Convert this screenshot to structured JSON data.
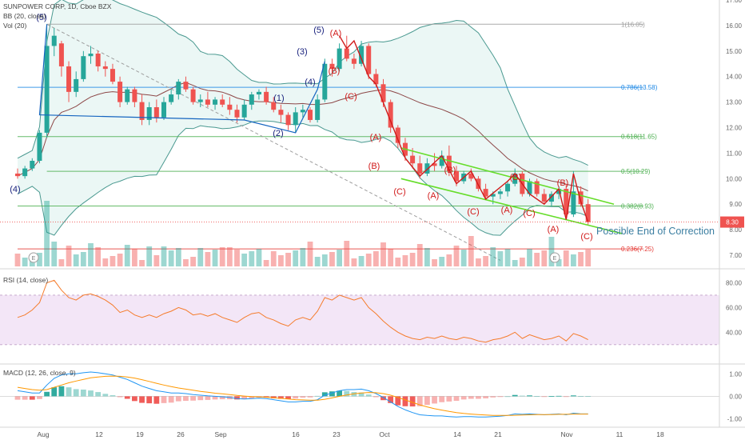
{
  "header": {
    "symbol_line": "SUNPOWER CORP, 1D, Cboe BZX",
    "bb_label": "BB (20, close)",
    "vol_label": "Vol (20)",
    "rsi_label": "RSI (14, close)",
    "macd_label": "MACD (12, 26, close, 9)"
  },
  "colors": {
    "up": "#26a69a",
    "down": "#ef5350",
    "bb_fill": "#e3f3f1",
    "bb_band": "#4a9990",
    "bb_basis": "#8d4848",
    "rsi_band": "#f3e6f7",
    "rsi_line": "#f57c2c",
    "macd_line": "#2196f3",
    "signal_line": "#ff9800",
    "channel": "#66dd2a",
    "wave": "#d11a1a",
    "wave_blue": "#1565c0",
    "fib": "#4caf50",
    "fib_1": "#9e9e9e",
    "fib_786": "#1e88e5",
    "fib_236": "#e53935",
    "price_badge": "#ef5350"
  },
  "annotations": {
    "possible_end": "Possible End of Correction",
    "earnings_marker": "E"
  },
  "fib_labels": [
    "1(16.05)",
    "0.786(13.58)",
    "0.618(11.65)",
    "0.5(10.29)",
    "0.382(8.93)",
    "0.236(7.25)"
  ],
  "wave_labels": [
    "(4)",
    "(5)",
    "(1)",
    "(2)",
    "(3)",
    "(4)",
    "(5)",
    "(A)",
    "(B)",
    "(C)",
    "(A)",
    "(B)",
    "(C)",
    "(A)",
    "(B)",
    "(C)",
    "(A)",
    "(B)",
    "(C)",
    "(A)",
    "(B)",
    "(C)"
  ],
  "last_price": "8.30",
  "chart_data": {
    "type": "candlestick",
    "title": "SUNPOWER CORP, 1D, Cboe BZX",
    "x_tick_labels": [
      "Aug",
      "12",
      "19",
      "26",
      "Sep",
      "16",
      "23",
      "Oct",
      "14",
      "21",
      "Nov",
      "11",
      "18"
    ],
    "price_axis": {
      "ylim": [
        6.5,
        17.0
      ],
      "tick_labels": [
        "7.00",
        "8.00",
        "9.00",
        "10.00",
        "11.00",
        "12.00",
        "13.00",
        "14.00",
        "15.00",
        "16.00",
        "17.00"
      ]
    },
    "candles": [
      [
        10.2,
        10.4,
        10.0,
        10.1
      ],
      [
        10.1,
        10.5,
        10.0,
        10.4
      ],
      [
        10.4,
        10.8,
        10.3,
        10.7
      ],
      [
        10.7,
        11.9,
        10.6,
        11.8
      ],
      [
        11.8,
        16.05,
        11.6,
        15.2
      ],
      [
        15.2,
        15.9,
        14.8,
        15.6
      ],
      [
        15.3,
        15.4,
        14.0,
        14.4
      ],
      [
        14.4,
        14.6,
        13.0,
        13.4
      ],
      [
        13.4,
        14.2,
        13.2,
        13.9
      ],
      [
        13.9,
        15.0,
        13.8,
        14.8
      ],
      [
        14.8,
        15.2,
        14.5,
        14.9
      ],
      [
        14.9,
        15.0,
        14.2,
        14.4
      ],
      [
        14.4,
        14.6,
        14.0,
        14.3
      ],
      [
        14.3,
        14.5,
        13.7,
        13.8
      ],
      [
        13.8,
        14.0,
        12.8,
        13.0
      ],
      [
        13.0,
        13.6,
        12.9,
        13.5
      ],
      [
        13.5,
        13.6,
        12.8,
        13.0
      ],
      [
        13.0,
        13.3,
        12.1,
        12.3
      ],
      [
        12.3,
        13.0,
        12.1,
        12.8
      ],
      [
        12.8,
        13.1,
        12.2,
        12.4
      ],
      [
        12.4,
        13.2,
        12.3,
        13.0
      ],
      [
        13.0,
        13.5,
        12.9,
        13.3
      ],
      [
        13.3,
        13.9,
        13.1,
        13.8
      ],
      [
        13.8,
        14.0,
        13.4,
        13.5
      ],
      [
        13.5,
        13.6,
        12.9,
        13.0
      ],
      [
        13.0,
        13.3,
        12.8,
        13.1
      ],
      [
        13.1,
        13.4,
        12.8,
        12.9
      ],
      [
        12.9,
        13.2,
        12.7,
        13.1
      ],
      [
        13.1,
        13.3,
        12.8,
        12.9
      ],
      [
        12.9,
        13.2,
        12.5,
        12.7
      ],
      [
        12.7,
        12.9,
        12.2,
        12.4
      ],
      [
        12.4,
        13.1,
        12.3,
        12.9
      ],
      [
        12.9,
        13.4,
        12.7,
        13.3
      ],
      [
        13.3,
        13.5,
        13.1,
        13.4
      ],
      [
        13.4,
        13.6,
        12.9,
        13.0
      ],
      [
        13.0,
        13.2,
        12.6,
        12.7
      ],
      [
        12.7,
        12.9,
        12.2,
        12.5
      ],
      [
        12.5,
        12.6,
        11.9,
        12.1
      ],
      [
        12.1,
        12.8,
        11.8,
        12.6
      ],
      [
        12.6,
        12.9,
        12.4,
        12.7
      ],
      [
        12.7,
        12.8,
        12.2,
        12.3
      ],
      [
        12.3,
        13.3,
        12.2,
        13.1
      ],
      [
        13.1,
        14.7,
        13.0,
        14.5
      ],
      [
        14.5,
        14.7,
        14.0,
        14.3
      ],
      [
        14.3,
        15.3,
        14.2,
        15.1
      ],
      [
        15.1,
        15.6,
        14.6,
        14.7
      ],
      [
        14.7,
        14.9,
        14.3,
        14.5
      ],
      [
        14.5,
        15.4,
        14.4,
        15.2
      ],
      [
        15.2,
        15.3,
        13.9,
        14.1
      ],
      [
        14.1,
        14.3,
        13.6,
        13.7
      ],
      [
        13.7,
        13.9,
        12.8,
        13.0
      ],
      [
        13.0,
        13.1,
        11.8,
        12.0
      ],
      [
        12.0,
        12.1,
        11.2,
        11.4
      ],
      [
        11.4,
        11.6,
        10.7,
        10.9
      ],
      [
        10.9,
        11.2,
        10.4,
        10.6
      ],
      [
        10.6,
        10.9,
        10.0,
        10.2
      ],
      [
        10.2,
        10.8,
        10.1,
        10.6
      ],
      [
        10.6,
        11.0,
        10.3,
        10.5
      ],
      [
        10.5,
        11.1,
        10.4,
        10.9
      ],
      [
        10.9,
        11.3,
        10.1,
        10.3
      ],
      [
        10.3,
        10.5,
        9.7,
        9.9
      ],
      [
        9.9,
        10.3,
        9.8,
        10.2
      ],
      [
        10.2,
        10.4,
        9.9,
        10.0
      ],
      [
        10.0,
        10.1,
        9.5,
        9.6
      ],
      [
        9.6,
        9.8,
        9.2,
        9.3
      ],
      [
        9.3,
        9.5,
        9.0,
        9.4
      ],
      [
        9.4,
        9.6,
        9.2,
        9.5
      ],
      [
        9.5,
        9.9,
        9.3,
        9.8
      ],
      [
        9.8,
        10.4,
        9.7,
        10.2
      ],
      [
        10.2,
        10.3,
        9.3,
        9.4
      ],
      [
        9.4,
        10.0,
        9.3,
        9.9
      ],
      [
        9.9,
        10.0,
        9.3,
        9.4
      ],
      [
        9.4,
        9.6,
        9.0,
        9.1
      ],
      [
        9.1,
        9.5,
        8.9,
        9.4
      ],
      [
        9.4,
        9.7,
        9.2,
        9.6
      ],
      [
        9.6,
        9.8,
        8.4,
        8.6
      ],
      [
        8.6,
        10.3,
        8.5,
        9.5
      ],
      [
        9.5,
        9.7,
        8.9,
        9.0
      ],
      [
        9.0,
        9.2,
        8.2,
        8.3
      ]
    ],
    "fib_levels": [
      {
        "label": "1(16.05)",
        "value": 16.05
      },
      {
        "label": "0.786(13.58)",
        "value": 13.58
      },
      {
        "label": "0.618(11.65)",
        "value": 11.65
      },
      {
        "label": "0.5(10.29)",
        "value": 10.29
      },
      {
        "label": "0.382(8.93)",
        "value": 8.93
      },
      {
        "label": "0.236(7.25)",
        "value": 7.25
      }
    ],
    "rsi": {
      "ylim": [
        15,
        90
      ],
      "band": [
        30,
        70
      ],
      "tick_labels": [
        "80.00",
        "60.00",
        "40.00"
      ],
      "values": [
        52,
        54,
        58,
        64,
        80,
        82,
        74,
        68,
        66,
        70,
        71,
        69,
        66,
        62,
        56,
        58,
        54,
        52,
        54,
        52,
        55,
        57,
        60,
        58,
        54,
        55,
        53,
        55,
        52,
        50,
        48,
        52,
        55,
        56,
        52,
        50,
        47,
        45,
        50,
        52,
        50,
        57,
        68,
        66,
        70,
        68,
        66,
        68,
        60,
        55,
        49,
        44,
        40,
        37,
        35,
        34,
        36,
        35,
        37,
        35,
        34,
        36,
        35,
        33,
        32,
        34,
        35,
        37,
        40,
        35,
        38,
        36,
        34,
        35,
        37,
        33,
        39,
        37,
        34
      ]
    },
    "macd": {
      "ylim": [
        -1.3,
        1.4
      ],
      "tick_labels": [
        "1.00",
        "0.00",
        "-1.00"
      ],
      "macd": [
        0.25,
        0.2,
        0.15,
        0.15,
        0.5,
        0.8,
        0.95,
        1.0,
        1.0,
        1.05,
        1.08,
        1.05,
        1.0,
        0.95,
        0.85,
        0.75,
        0.6,
        0.45,
        0.35,
        0.25,
        0.2,
        0.15,
        0.15,
        0.12,
        0.08,
        0.05,
        0.02,
        0.0,
        -0.02,
        -0.05,
        -0.1,
        -0.12,
        -0.1,
        -0.08,
        -0.1,
        -0.15,
        -0.2,
        -0.25,
        -0.25,
        -0.22,
        -0.22,
        -0.15,
        0.05,
        0.15,
        0.25,
        0.3,
        0.3,
        0.32,
        0.25,
        0.12,
        -0.05,
        -0.25,
        -0.45,
        -0.6,
        -0.72,
        -0.82,
        -0.85,
        -0.87,
        -0.87,
        -0.9,
        -0.92,
        -0.9,
        -0.9,
        -0.92,
        -0.92,
        -0.9,
        -0.88,
        -0.85,
        -0.78,
        -0.8,
        -0.78,
        -0.8,
        -0.82,
        -0.8,
        -0.78,
        -0.82,
        -0.75,
        -0.78,
        -0.78
      ],
      "signal": [
        0.4,
        0.35,
        0.3,
        0.27,
        0.3,
        0.4,
        0.5,
        0.6,
        0.68,
        0.75,
        0.82,
        0.86,
        0.89,
        0.9,
        0.89,
        0.86,
        0.81,
        0.74,
        0.66,
        0.58,
        0.5,
        0.43,
        0.37,
        0.32,
        0.27,
        0.22,
        0.18,
        0.14,
        0.11,
        0.08,
        0.04,
        0.01,
        -0.01,
        -0.02,
        -0.04,
        -0.06,
        -0.09,
        -0.12,
        -0.15,
        -0.16,
        -0.17,
        -0.17,
        -0.13,
        -0.07,
        0.0,
        0.06,
        0.11,
        0.15,
        0.17,
        0.16,
        0.12,
        0.05,
        -0.05,
        -0.16,
        -0.27,
        -0.38,
        -0.47,
        -0.55,
        -0.61,
        -0.67,
        -0.72,
        -0.76,
        -0.79,
        -0.81,
        -0.83,
        -0.85,
        -0.85,
        -0.85,
        -0.84,
        -0.83,
        -0.82,
        -0.81,
        -0.81,
        -0.81,
        -0.8,
        -0.8,
        -0.79,
        -0.79,
        -0.79
      ]
    }
  }
}
